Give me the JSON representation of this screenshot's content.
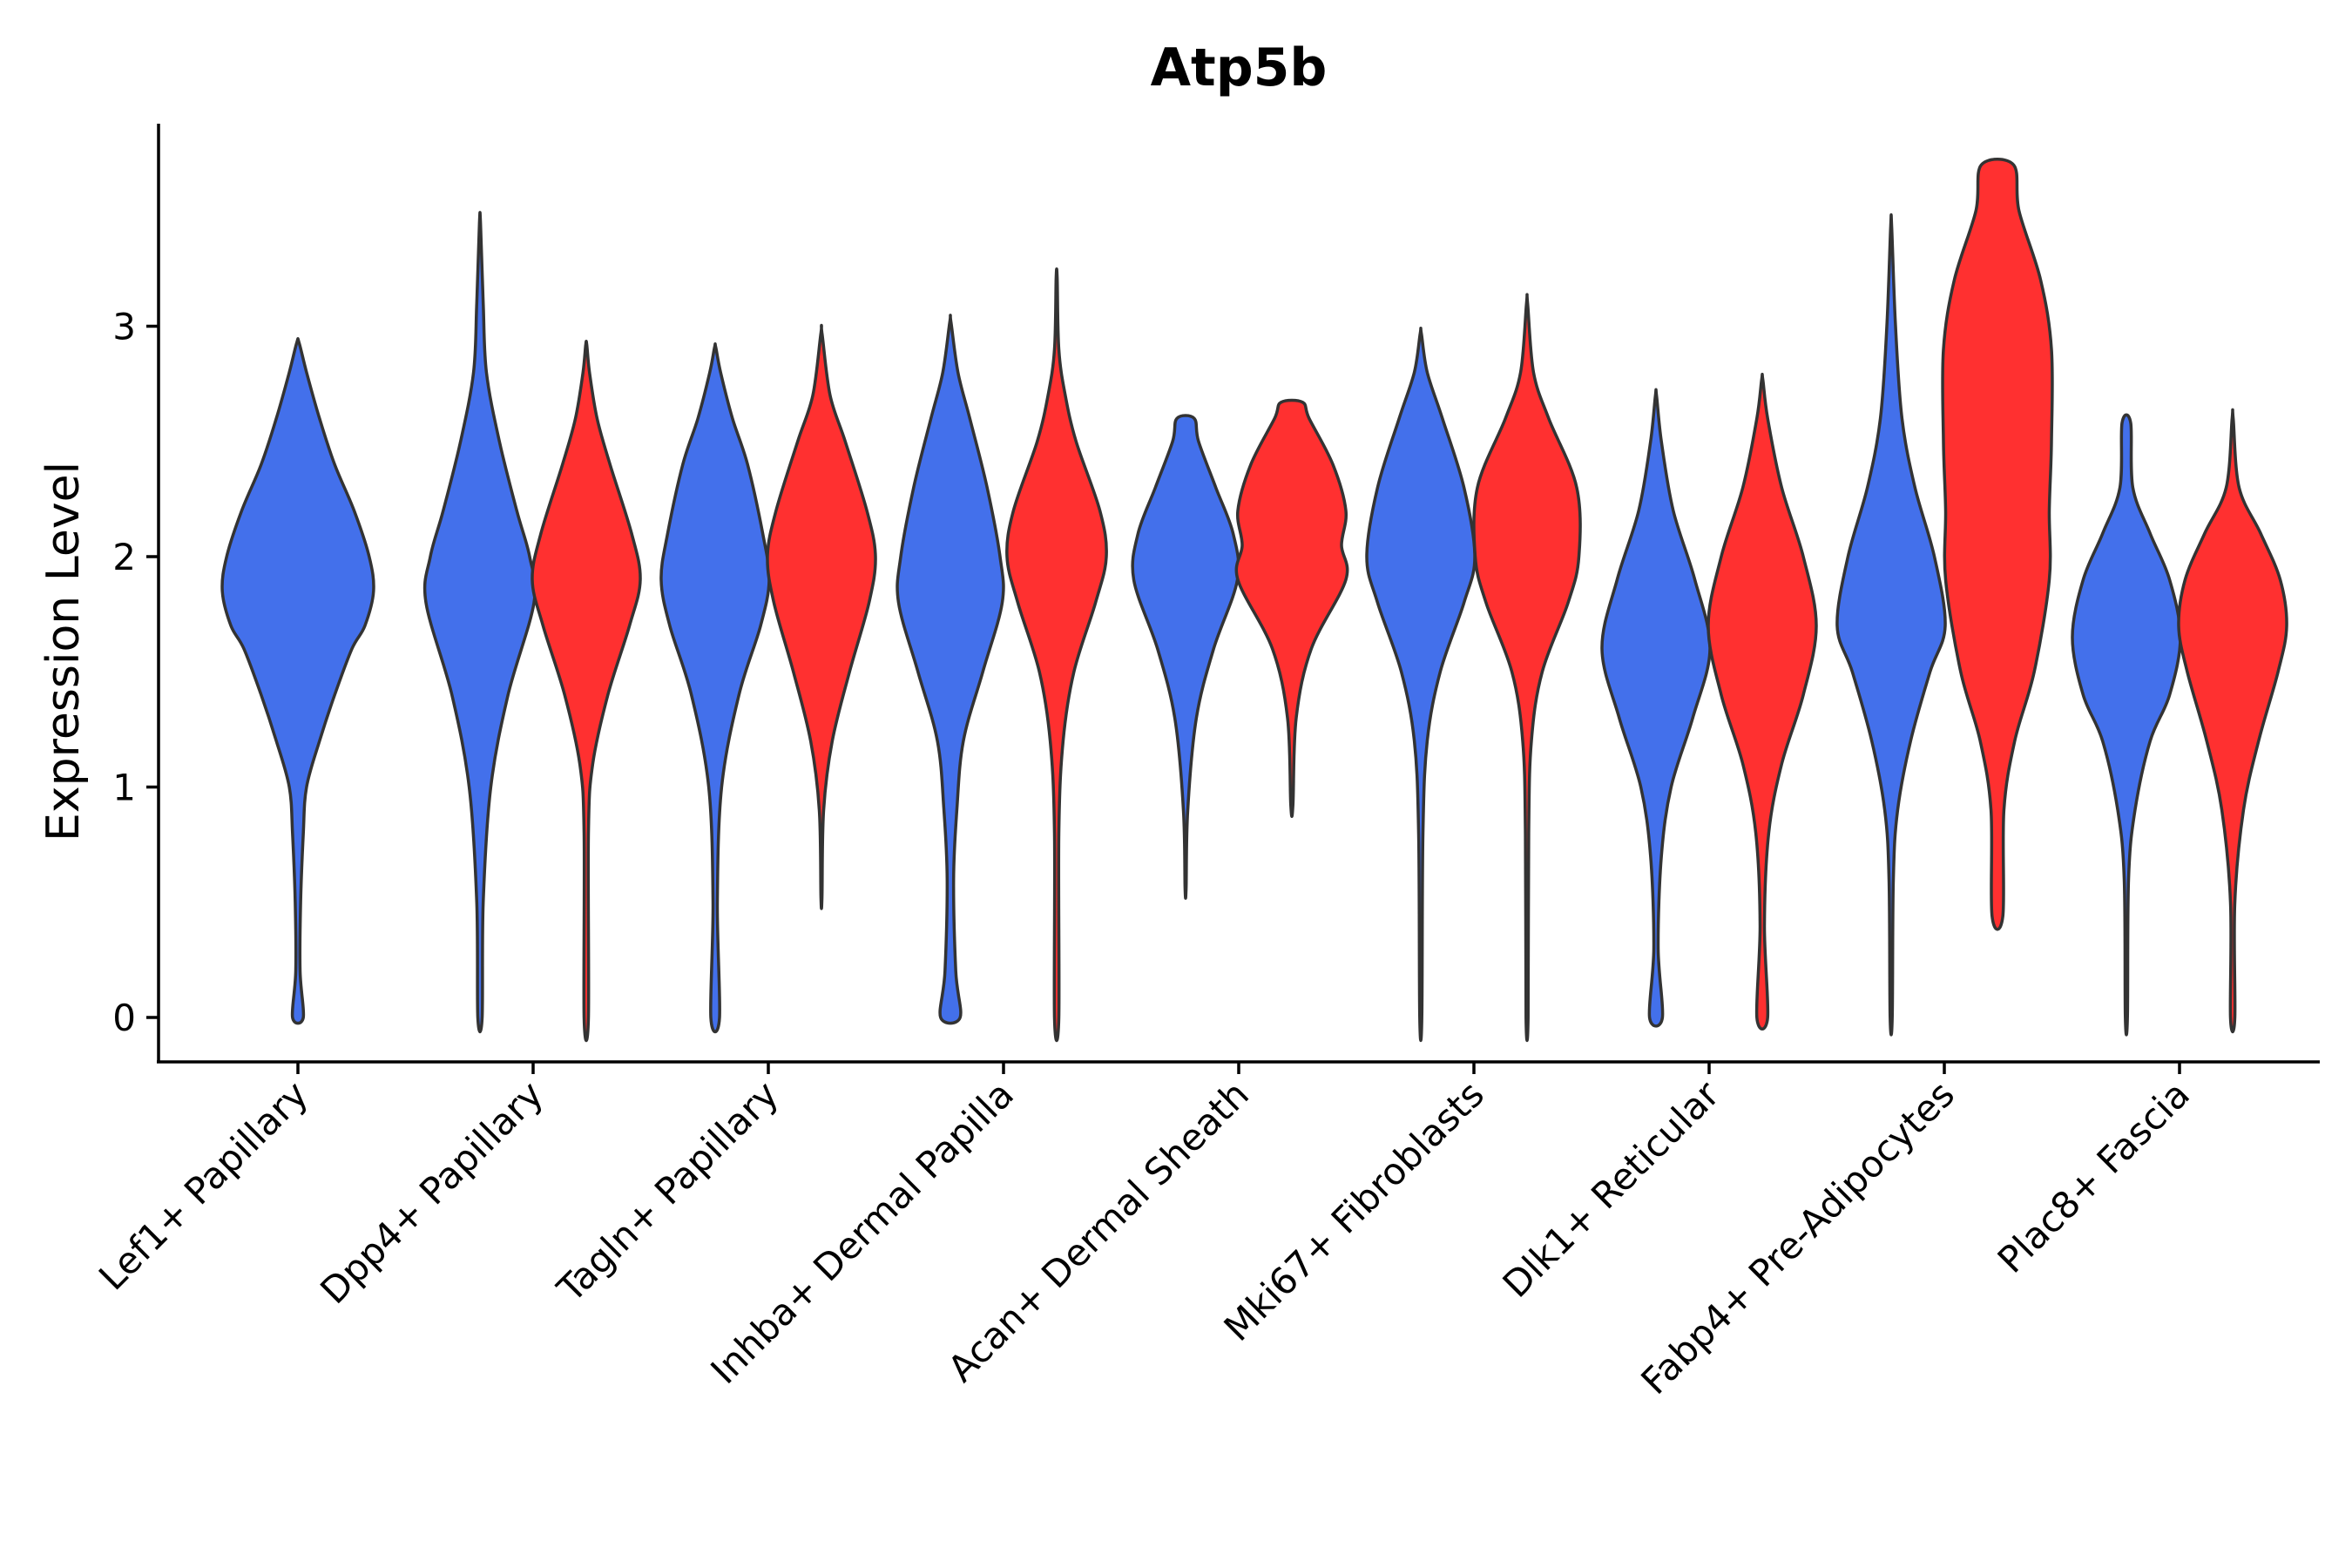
{
  "chart_data": {
    "type": "violin",
    "title": "Atp5b",
    "xlabel": "",
    "ylabel": "Expression Level",
    "ylim": [
      -0.18,
      3.9
    ],
    "yticks": [
      0,
      1,
      2,
      3
    ],
    "categories": [
      "Lef1+ Papillary",
      "Dpp4+ Papillary",
      "Tagln+ Papillary",
      "Inhba+ Dermal Papilla",
      "Acan+ Dermal Sheath",
      "Mki67+ Fibroblasts",
      "Dlk1+ Reticular",
      "Fabp4+ Pre-Adipocytes",
      "Plac8+ Fascia"
    ],
    "colors": {
      "group_a": "#4370eb",
      "group_b": "#ff3030",
      "outline": "#333333"
    },
    "violins": [
      {
        "category": 0,
        "group": "a",
        "min": 0,
        "max": 2.93,
        "profile": [
          [
            0,
            0.05
          ],
          [
            0.2,
            0.02
          ],
          [
            0.5,
            0.025
          ],
          [
            0.8,
            0.05
          ],
          [
            1.0,
            0.08
          ],
          [
            1.2,
            0.2
          ],
          [
            1.4,
            0.34
          ],
          [
            1.6,
            0.5
          ],
          [
            1.7,
            0.62
          ],
          [
            1.85,
            0.7
          ],
          [
            2.0,
            0.66
          ],
          [
            2.2,
            0.52
          ],
          [
            2.4,
            0.34
          ],
          [
            2.6,
            0.2
          ],
          [
            2.8,
            0.08
          ],
          [
            2.93,
            0.01
          ]
        ]
      },
      {
        "category": 1,
        "group": "a",
        "min": 0,
        "max": 3.45,
        "profile": [
          [
            0,
            0.02
          ],
          [
            0.5,
            0.03
          ],
          [
            1.0,
            0.1
          ],
          [
            1.4,
            0.26
          ],
          [
            1.8,
            0.5
          ],
          [
            2.0,
            0.46
          ],
          [
            2.2,
            0.34
          ],
          [
            2.5,
            0.18
          ],
          [
            2.8,
            0.06
          ],
          [
            3.1,
            0.03
          ],
          [
            3.45,
            0.005
          ]
        ]
      },
      {
        "category": 1,
        "group": "b",
        "min": 0,
        "max": 2.92,
        "profile": [
          [
            0,
            0.02
          ],
          [
            0.8,
            0.02
          ],
          [
            1.1,
            0.06
          ],
          [
            1.4,
            0.2
          ],
          [
            1.7,
            0.4
          ],
          [
            1.9,
            0.5
          ],
          [
            2.1,
            0.42
          ],
          [
            2.4,
            0.22
          ],
          [
            2.6,
            0.1
          ],
          [
            2.8,
            0.03
          ],
          [
            2.92,
            0.005
          ]
        ]
      },
      {
        "category": 2,
        "group": "a",
        "min": 0,
        "max": 2.91,
        "profile": [
          [
            0,
            0.04
          ],
          [
            0.5,
            0.02
          ],
          [
            1.0,
            0.06
          ],
          [
            1.4,
            0.22
          ],
          [
            1.7,
            0.42
          ],
          [
            1.9,
            0.5
          ],
          [
            2.1,
            0.44
          ],
          [
            2.4,
            0.3
          ],
          [
            2.6,
            0.16
          ],
          [
            2.8,
            0.05
          ],
          [
            2.91,
            0.005
          ]
        ]
      },
      {
        "category": 2,
        "group": "b",
        "min": 0.52,
        "max": 2.97,
        "profile": [
          [
            0.52,
            0.005
          ],
          [
            0.9,
            0.02
          ],
          [
            1.2,
            0.1
          ],
          [
            1.5,
            0.26
          ],
          [
            1.8,
            0.44
          ],
          [
            2.0,
            0.5
          ],
          [
            2.2,
            0.42
          ],
          [
            2.5,
            0.22
          ],
          [
            2.7,
            0.08
          ],
          [
            2.97,
            0.005
          ]
        ]
      },
      {
        "category": 3,
        "group": "a",
        "min": 0,
        "max": 3.02,
        "profile": [
          [
            0,
            0.09
          ],
          [
            0.2,
            0.05
          ],
          [
            0.6,
            0.03
          ],
          [
            0.9,
            0.06
          ],
          [
            1.2,
            0.12
          ],
          [
            1.5,
            0.3
          ],
          [
            1.8,
            0.48
          ],
          [
            2.0,
            0.46
          ],
          [
            2.3,
            0.34
          ],
          [
            2.6,
            0.18
          ],
          [
            2.8,
            0.07
          ],
          [
            3.02,
            0.005
          ]
        ]
      },
      {
        "category": 3,
        "group": "b",
        "min": 0,
        "max": 3.21,
        "profile": [
          [
            0,
            0.02
          ],
          [
            0.8,
            0.02
          ],
          [
            1.2,
            0.06
          ],
          [
            1.5,
            0.16
          ],
          [
            1.8,
            0.36
          ],
          [
            2.0,
            0.46
          ],
          [
            2.2,
            0.4
          ],
          [
            2.5,
            0.18
          ],
          [
            2.7,
            0.08
          ],
          [
            2.9,
            0.02
          ],
          [
            3.21,
            0.005
          ]
        ]
      },
      {
        "category": 4,
        "group": "a",
        "min": 0.56,
        "max": 2.6,
        "profile": [
          [
            0.56,
            0.005
          ],
          [
            0.9,
            0.02
          ],
          [
            1.3,
            0.1
          ],
          [
            1.6,
            0.26
          ],
          [
            1.9,
            0.48
          ],
          [
            2.1,
            0.44
          ],
          [
            2.3,
            0.28
          ],
          [
            2.5,
            0.12
          ],
          [
            2.6,
            0.08
          ]
        ]
      },
      {
        "category": 4,
        "group": "b",
        "min": 0.92,
        "max": 2.67,
        "profile": [
          [
            0.92,
            0.01
          ],
          [
            1.3,
            0.04
          ],
          [
            1.6,
            0.18
          ],
          [
            1.9,
            0.5
          ],
          [
            2.05,
            0.46
          ],
          [
            2.2,
            0.5
          ],
          [
            2.4,
            0.38
          ],
          [
            2.6,
            0.16
          ],
          [
            2.67,
            0.1
          ]
        ]
      },
      {
        "category": 5,
        "group": "a",
        "min": 0,
        "max": 2.97,
        "profile": [
          [
            0,
            0.01
          ],
          [
            0.8,
            0.02
          ],
          [
            1.2,
            0.06
          ],
          [
            1.5,
            0.18
          ],
          [
            1.8,
            0.4
          ],
          [
            2.0,
            0.5
          ],
          [
            2.3,
            0.4
          ],
          [
            2.6,
            0.2
          ],
          [
            2.8,
            0.06
          ],
          [
            2.97,
            0.005
          ]
        ]
      },
      {
        "category": 5,
        "group": "b",
        "min": 0,
        "max": 3.1,
        "profile": [
          [
            0,
            0.01
          ],
          [
            0.8,
            0.015
          ],
          [
            1.2,
            0.04
          ],
          [
            1.5,
            0.14
          ],
          [
            1.8,
            0.38
          ],
          [
            2.0,
            0.48
          ],
          [
            2.3,
            0.46
          ],
          [
            2.6,
            0.2
          ],
          [
            2.8,
            0.06
          ],
          [
            3.1,
            0.005
          ]
        ]
      },
      {
        "category": 6,
        "group": "a",
        "min": 0,
        "max": 2.7,
        "profile": [
          [
            0,
            0.06
          ],
          [
            0.3,
            0.02
          ],
          [
            0.7,
            0.05
          ],
          [
            1.0,
            0.14
          ],
          [
            1.3,
            0.34
          ],
          [
            1.6,
            0.5
          ],
          [
            1.9,
            0.36
          ],
          [
            2.2,
            0.16
          ],
          [
            2.5,
            0.05
          ],
          [
            2.7,
            0.005
          ]
        ]
      },
      {
        "category": 6,
        "group": "b",
        "min": 0,
        "max": 2.77,
        "profile": [
          [
            0,
            0.05
          ],
          [
            0.4,
            0.02
          ],
          [
            0.8,
            0.06
          ],
          [
            1.1,
            0.18
          ],
          [
            1.4,
            0.38
          ],
          [
            1.7,
            0.5
          ],
          [
            2.0,
            0.38
          ],
          [
            2.3,
            0.18
          ],
          [
            2.6,
            0.05
          ],
          [
            2.77,
            0.005
          ]
        ]
      },
      {
        "category": 7,
        "group": "a",
        "min": 0,
        "max": 3.43,
        "profile": [
          [
            0,
            0.01
          ],
          [
            0.6,
            0.02
          ],
          [
            0.9,
            0.06
          ],
          [
            1.2,
            0.18
          ],
          [
            1.5,
            0.36
          ],
          [
            1.7,
            0.5
          ],
          [
            2.0,
            0.4
          ],
          [
            2.3,
            0.22
          ],
          [
            2.6,
            0.1
          ],
          [
            3.0,
            0.04
          ],
          [
            3.43,
            0.005
          ]
        ]
      },
      {
        "category": 7,
        "group": "b",
        "min": 0.44,
        "max": 3.7,
        "profile": [
          [
            0.44,
            0.05
          ],
          [
            0.9,
            0.06
          ],
          [
            1.2,
            0.16
          ],
          [
            1.5,
            0.34
          ],
          [
            1.9,
            0.48
          ],
          [
            2.2,
            0.48
          ],
          [
            2.5,
            0.5
          ],
          [
            2.9,
            0.5
          ],
          [
            3.2,
            0.4
          ],
          [
            3.5,
            0.2
          ],
          [
            3.7,
            0.15
          ]
        ]
      },
      {
        "category": 8,
        "group": "a",
        "min": 0,
        "max": 2.58,
        "profile": [
          [
            0,
            0.01
          ],
          [
            0.6,
            0.02
          ],
          [
            0.9,
            0.08
          ],
          [
            1.2,
            0.22
          ],
          [
            1.4,
            0.4
          ],
          [
            1.65,
            0.5
          ],
          [
            1.9,
            0.4
          ],
          [
            2.1,
            0.22
          ],
          [
            2.3,
            0.06
          ],
          [
            2.58,
            0.04
          ]
        ]
      },
      {
        "category": 8,
        "group": "b",
        "min": 0,
        "max": 2.6,
        "profile": [
          [
            0,
            0.02
          ],
          [
            0.5,
            0.02
          ],
          [
            0.9,
            0.1
          ],
          [
            1.2,
            0.24
          ],
          [
            1.5,
            0.42
          ],
          [
            1.7,
            0.5
          ],
          [
            1.9,
            0.44
          ],
          [
            2.1,
            0.26
          ],
          [
            2.3,
            0.06
          ],
          [
            2.6,
            0.005
          ]
        ]
      }
    ]
  }
}
